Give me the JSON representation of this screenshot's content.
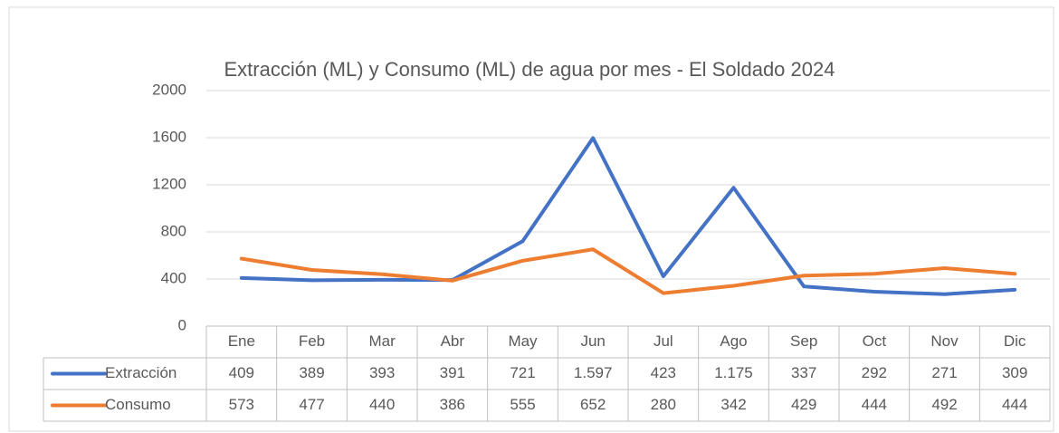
{
  "chart_data": {
    "type": "line",
    "title": "Extracción (ML) y Consumo (ML) de agua por mes - El Soldado 2024",
    "categories": [
      "Ene",
      "Feb",
      "Mar",
      "Abr",
      "May",
      "Jun",
      "Jul",
      "Ago",
      "Sep",
      "Oct",
      "Nov",
      "Dic"
    ],
    "series": [
      {
        "name": "Extracción",
        "color": "#4472c4",
        "values": [
          409,
          389,
          393,
          391,
          721,
          1597,
          423,
          1175,
          337,
          292,
          271,
          309
        ],
        "value_labels": [
          "409",
          "389",
          "393",
          "391",
          "721",
          "1.597",
          "423",
          "1.175",
          "337",
          "292",
          "271",
          "309"
        ]
      },
      {
        "name": "Consumo",
        "color": "#ed7d31",
        "values": [
          573,
          477,
          440,
          386,
          555,
          652,
          280,
          342,
          429,
          444,
          492,
          444
        ],
        "value_labels": [
          "573",
          "477",
          "440",
          "386",
          "555",
          "652",
          "280",
          "342",
          "429",
          "444",
          "492",
          "444"
        ]
      }
    ],
    "ylim": [
      0,
      2000
    ],
    "yticks": [
      0,
      400,
      800,
      1200,
      1600,
      2000
    ],
    "grid": true
  }
}
